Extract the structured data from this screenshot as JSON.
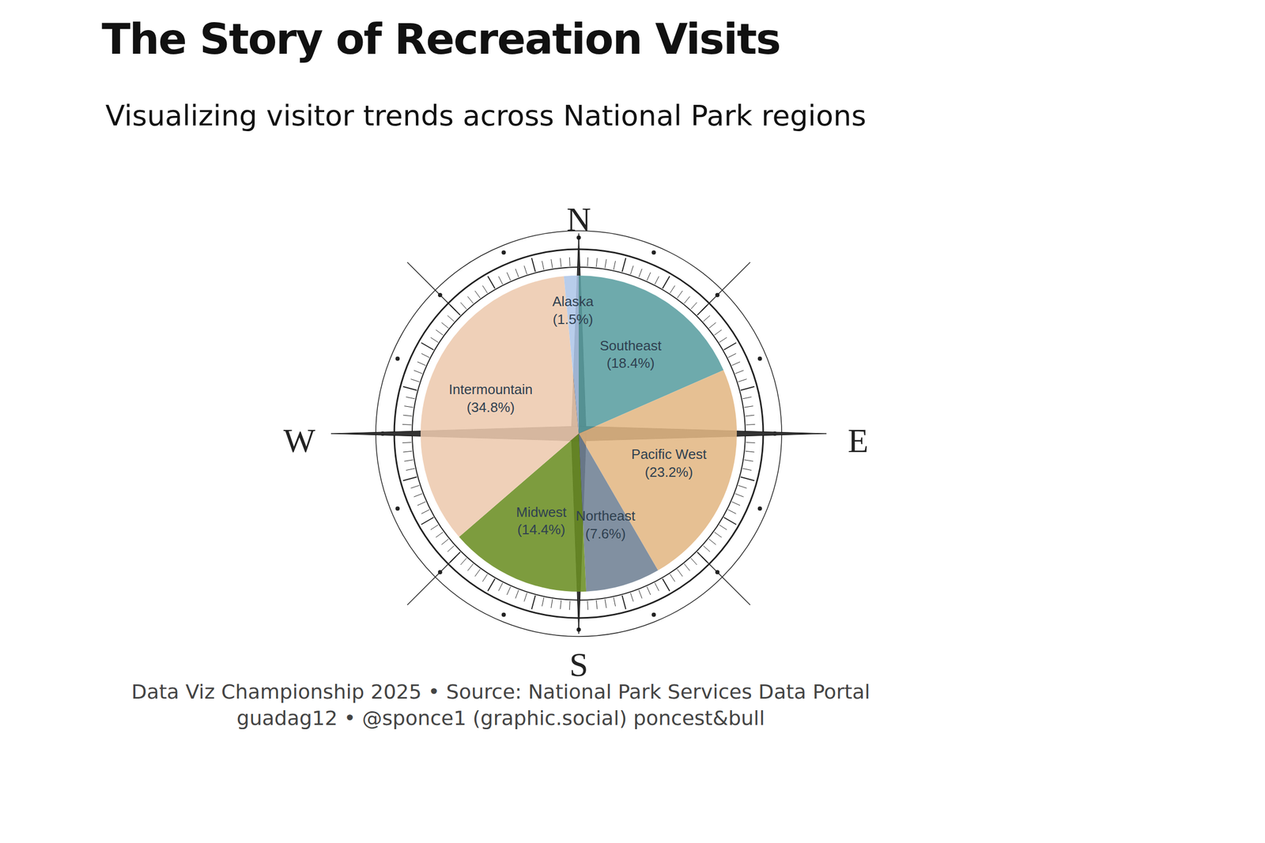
{
  "chart_data": {
    "type": "pie",
    "title": "The Story of Recreation Visits",
    "subtitle": "Visualizing visitor trends across National Park regions",
    "categories": [
      "Southeast",
      "Pacific West",
      "Northeast",
      "Midwest",
      "Intermountain",
      "Alaska"
    ],
    "values": [
      18.4,
      23.2,
      7.6,
      14.4,
      34.8,
      1.5
    ],
    "value_labels": [
      "(18.4%)",
      "(23.2%)",
      "(7.6%)",
      "(14.4%)",
      "(34.8%)",
      "(1.5%)"
    ],
    "colors": [
      "#5a9ea0",
      "#e3b784",
      "#6f8194",
      "#6b8e23",
      "#edc9ae",
      "#aec6e8"
    ],
    "data_labels": true,
    "compass_labels": [
      "N",
      "E",
      "S",
      "W"
    ],
    "caption": [
      "Data Viz Championship 2025 • Source: National Park Services Data Portal",
      "guadag12 • @sponce1 (graphic.social) poncest&bull"
    ]
  }
}
